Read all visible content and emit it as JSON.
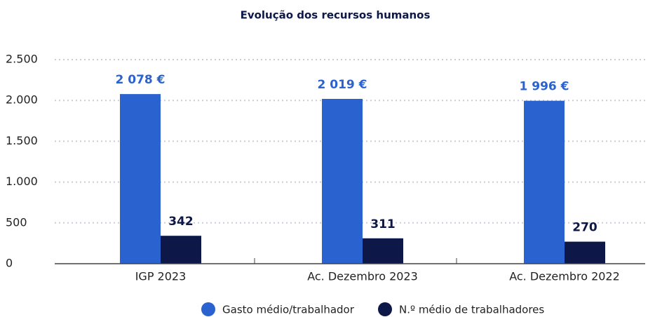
{
  "chart_data": {
    "type": "bar",
    "title": "Evolução dos recursos humanos",
    "categories": [
      "IGP 2023",
      "Ac. Dezembro 2023",
      "Ac. Dezembro 2022"
    ],
    "series": [
      {
        "name": "Gasto médio/trabalhador",
        "color": "#2a62d0",
        "values": [
          2078,
          2019,
          1996
        ],
        "value_labels": [
          "2 078 €",
          "2 019 €",
          "1 996 €"
        ]
      },
      {
        "name": "N.º médio de trabalhadores",
        "color": "#0e1848",
        "values": [
          342,
          311,
          270
        ]
      }
    ],
    "ylim": [
      0,
      2500
    ],
    "yticks": [
      0,
      500,
      {
        "value": 1000,
        "label": "1.000"
      },
      {
        "value": 1500,
        "label": "1.500"
      },
      {
        "value": 2000,
        "label": "2.000"
      },
      {
        "value": 2500,
        "label": "2.500"
      }
    ],
    "grid": true,
    "legend": "bottom"
  }
}
